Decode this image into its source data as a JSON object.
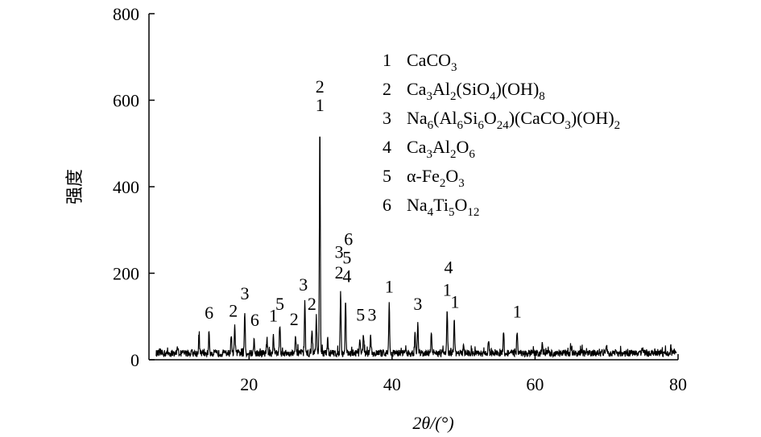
{
  "chart_data": {
    "type": "line",
    "xlabel": "2θ/(°)",
    "ylabel": "强度",
    "xlim": [
      6,
      80
    ],
    "ylim": [
      0,
      800
    ],
    "x_ticks": [
      {
        "value": 20,
        "label": "20"
      },
      {
        "value": 40,
        "label": "40"
      },
      {
        "value": 60,
        "label": "60"
      },
      {
        "value": 80,
        "label": "80"
      }
    ],
    "y_ticks": [
      {
        "value": 0,
        "label": "0"
      },
      {
        "value": 200,
        "label": "200"
      },
      {
        "value": 400,
        "label": "400"
      },
      {
        "value": 600,
        "label": "600"
      },
      {
        "value": 800,
        "label": "800"
      }
    ],
    "grid": false,
    "legend_position": "top-right",
    "legend": [
      {
        "number": "1",
        "formula": [
          [
            "CaCO",
            "n"
          ],
          [
            "3",
            "sub"
          ]
        ]
      },
      {
        "number": "2",
        "formula": [
          [
            "Ca",
            "n"
          ],
          [
            "3",
            "sub"
          ],
          [
            "Al",
            "n"
          ],
          [
            "2",
            "sub"
          ],
          [
            "(SiO",
            "n"
          ],
          [
            "4",
            "sub"
          ],
          [
            ")(OH)",
            "n"
          ],
          [
            "8",
            "sub"
          ]
        ]
      },
      {
        "number": "3",
        "formula": [
          [
            "Na",
            "n"
          ],
          [
            "6",
            "sub"
          ],
          [
            "(Al",
            "n"
          ],
          [
            "6",
            "sub"
          ],
          [
            "Si",
            "n"
          ],
          [
            "6",
            "sub"
          ],
          [
            "O",
            "n"
          ],
          [
            "24",
            "sub"
          ],
          [
            ")(CaCO",
            "n"
          ],
          [
            "3",
            "sub"
          ],
          [
            ")(OH)",
            "n"
          ],
          [
            "2",
            "sub"
          ]
        ]
      },
      {
        "number": "4",
        "formula": [
          [
            "Ca",
            "n"
          ],
          [
            "3",
            "sub"
          ],
          [
            "Al",
            "n"
          ],
          [
            "2",
            "sub"
          ],
          [
            "O",
            "n"
          ],
          [
            "6",
            "sub"
          ]
        ]
      },
      {
        "number": "5",
        "formula": [
          [
            "α-Fe",
            "n"
          ],
          [
            "2",
            "sub"
          ],
          [
            "O",
            "n"
          ],
          [
            "3",
            "sub"
          ]
        ]
      },
      {
        "number": "6",
        "formula": [
          [
            "Na",
            "n"
          ],
          [
            "4",
            "sub"
          ],
          [
            "Ti",
            "n"
          ],
          [
            "5",
            "sub"
          ],
          [
            "O",
            "n"
          ],
          [
            "12",
            "sub"
          ]
        ]
      }
    ],
    "baseline": 15,
    "peaks": [
      {
        "x": 10.0,
        "y": 30
      },
      {
        "x": 13.0,
        "y": 55
      },
      {
        "x": 14.4,
        "y": 65
      },
      {
        "x": 17.5,
        "y": 60
      },
      {
        "x": 18.0,
        "y": 75
      },
      {
        "x": 19.4,
        "y": 110
      },
      {
        "x": 20.7,
        "y": 45
      },
      {
        "x": 22.5,
        "y": 50
      },
      {
        "x": 23.4,
        "y": 60
      },
      {
        "x": 24.3,
        "y": 85
      },
      {
        "x": 26.5,
        "y": 50
      },
      {
        "x": 27.8,
        "y": 130
      },
      {
        "x": 28.8,
        "y": 75
      },
      {
        "x": 29.4,
        "y": 100
      },
      {
        "x": 29.9,
        "y": 540
      },
      {
        "x": 31.0,
        "y": 45
      },
      {
        "x": 32.8,
        "y": 155
      },
      {
        "x": 33.5,
        "y": 140
      },
      {
        "x": 35.5,
        "y": 50
      },
      {
        "x": 36.0,
        "y": 60
      },
      {
        "x": 37.0,
        "y": 60
      },
      {
        "x": 39.6,
        "y": 130
      },
      {
        "x": 43.2,
        "y": 60
      },
      {
        "x": 43.6,
        "y": 90
      },
      {
        "x": 45.5,
        "y": 70
      },
      {
        "x": 47.7,
        "y": 120
      },
      {
        "x": 48.7,
        "y": 90
      },
      {
        "x": 50.0,
        "y": 30
      },
      {
        "x": 53.5,
        "y": 45
      },
      {
        "x": 55.6,
        "y": 65
      },
      {
        "x": 57.5,
        "y": 70
      },
      {
        "x": 61.0,
        "y": 35
      },
      {
        "x": 65.0,
        "y": 30
      },
      {
        "x": 70.0,
        "y": 30
      },
      {
        "x": 75.0,
        "y": 28
      },
      {
        "x": 79.0,
        "y": 28
      }
    ],
    "peak_labels": [
      {
        "x": 14.4,
        "y": 95,
        "text": "6"
      },
      {
        "x": 17.8,
        "y": 100,
        "text": "2"
      },
      {
        "x": 19.4,
        "y": 140,
        "text": "3"
      },
      {
        "x": 20.8,
        "y": 78,
        "text": "6"
      },
      {
        "x": 23.4,
        "y": 88,
        "text": "1"
      },
      {
        "x": 24.3,
        "y": 115,
        "text": "5"
      },
      {
        "x": 26.3,
        "y": 80,
        "text": "2"
      },
      {
        "x": 27.6,
        "y": 160,
        "text": "3"
      },
      {
        "x": 28.8,
        "y": 115,
        "text": "2"
      },
      {
        "x": 29.9,
        "y": 575,
        "text": "1"
      },
      {
        "x": 29.9,
        "y": 618,
        "text": "2"
      },
      {
        "x": 32.6,
        "y": 188,
        "text": "2"
      },
      {
        "x": 32.6,
        "y": 235,
        "text": "3"
      },
      {
        "x": 33.7,
        "y": 180,
        "text": "4"
      },
      {
        "x": 33.7,
        "y": 222,
        "text": "5"
      },
      {
        "x": 33.9,
        "y": 265,
        "text": "6"
      },
      {
        "x": 35.6,
        "y": 90,
        "text": "5"
      },
      {
        "x": 37.2,
        "y": 90,
        "text": "3"
      },
      {
        "x": 39.6,
        "y": 155,
        "text": "1"
      },
      {
        "x": 43.6,
        "y": 115,
        "text": "3"
      },
      {
        "x": 47.7,
        "y": 148,
        "text": "1"
      },
      {
        "x": 47.9,
        "y": 200,
        "text": "4"
      },
      {
        "x": 48.8,
        "y": 120,
        "text": "1"
      },
      {
        "x": 57.5,
        "y": 98,
        "text": "1"
      }
    ]
  }
}
